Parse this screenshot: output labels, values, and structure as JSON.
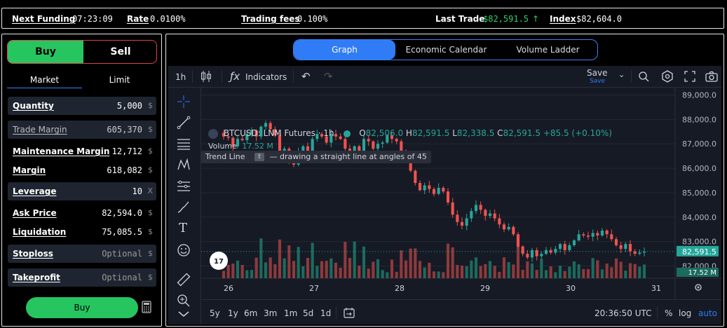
{
  "topbar": {
    "next_funding_label": "Next Funding",
    "next_funding_value": "07:23:09",
    "rate_label": "Rate",
    "rate_value": "0.0100%",
    "fees_label": "Trading fees",
    "fees_value": "0.100%",
    "last_trade_label": "Last Trade",
    "last_trade_value": "$82,591.5",
    "index_label": "Index",
    "index_value": "$82,604.0"
  },
  "order": {
    "buy_tab": "Buy",
    "sell_tab": "Sell",
    "market_tab": "Market",
    "limit_tab": "Limit",
    "quantity_label": "Quantity",
    "quantity_value": "5,000",
    "currency_symbol": "$",
    "trade_margin_label": "Trade Margin",
    "trade_margin_value": "605,370",
    "maintenance_margin_label": "Maintenance Margin",
    "maintenance_margin_value": "12,712",
    "margin_label": "Margin",
    "margin_value": "618,082",
    "leverage_label": "Leverage",
    "leverage_value": "10",
    "leverage_unit": "X",
    "ask_price_label": "Ask Price",
    "ask_price_value": "82,594.0",
    "liquidation_label": "Liquidation",
    "liquidation_value": "75,085.5",
    "stoploss_label": "Stoploss",
    "stoploss_placeholder": "Optional",
    "takeprofit_label": "Takeprofit",
    "takeprofit_placeholder": "Optional",
    "buy_button": "Buy"
  },
  "view_tabs": [
    "Graph",
    "Economic Calendar",
    "Volume Ladder"
  ],
  "chart_toolbar": {
    "interval": "1h",
    "indicators": "Indicators",
    "save": "Save",
    "save_sub": "Save"
  },
  "chart_legend": {
    "symbol": "BTCUSD: LNM Futures · 1h",
    "open_label": "O",
    "open": "82,506.0",
    "high_label": "H",
    "high": "82,591.5",
    "low_label": "L",
    "low": "82,338.5",
    "close_label": "C",
    "close": "82,591.5",
    "change": "+85.5 (+0.10%)",
    "volume_label": "Volume",
    "volume_value": "17.52 M"
  },
  "tooltip": {
    "title": "Trend Line",
    "text": "— drawing a straight line at angles of 45"
  },
  "bottom_bar": {
    "ranges": [
      "5y",
      "1y",
      "6m",
      "3m",
      "1m",
      "5d",
      "1d"
    ],
    "time": "20:36:50 UTC",
    "percent": "%",
    "log": "log",
    "auto": "auto"
  },
  "colors": {
    "up": "#26a69a",
    "down": "#ef5350",
    "accent": "#2f7cf6",
    "buy": "#26c560"
  },
  "chart_data": {
    "type": "candlestick",
    "price_axis_ticks": [
      "89,000.0",
      "88,000.0",
      "87,000.0",
      "86,000.0",
      "85,000.0",
      "84,000.0",
      "83,000.0",
      "82,000.0"
    ],
    "price_ticks_values": [
      89000,
      88000,
      87000,
      86000,
      85000,
      84000,
      83000,
      82000
    ],
    "date_ticks": [
      "26",
      "27",
      "28",
      "29",
      "30",
      "31"
    ],
    "last_price_label": "82,591.5",
    "last_price": 82591.5,
    "last_volume_label": "17.52 M",
    "ylim": [
      81500,
      89300
    ],
    "close_path": [
      87300,
      87250,
      86900,
      87200,
      87150,
      87400,
      87550,
      87300,
      87700,
      87850,
      87600,
      87350,
      86600,
      86800,
      86350,
      86150,
      86700,
      86900,
      86600,
      87200,
      87400,
      87300,
      87050,
      87400,
      87300,
      87200,
      86800,
      86450,
      86900,
      86700,
      87200,
      87100,
      86800,
      87000,
      87050,
      87350,
      87200,
      87100,
      86700,
      86350,
      85900,
      85400,
      85100,
      85300,
      85150,
      84950,
      85200,
      85050,
      84600,
      84100,
      83800,
      83650,
      83950,
      84250,
      84500,
      84300,
      84050,
      84150,
      83950,
      83700,
      83500,
      83600,
      83300,
      82800,
      82500,
      82350,
      82650,
      82400,
      82500,
      82650,
      82550,
      82700,
      82900,
      82650,
      82850,
      83050,
      83300,
      83250,
      83200,
      83350,
      83250,
      83450,
      83300,
      83100,
      82850,
      82700,
      82900,
      82600,
      82500,
      82550,
      82591
    ]
  }
}
